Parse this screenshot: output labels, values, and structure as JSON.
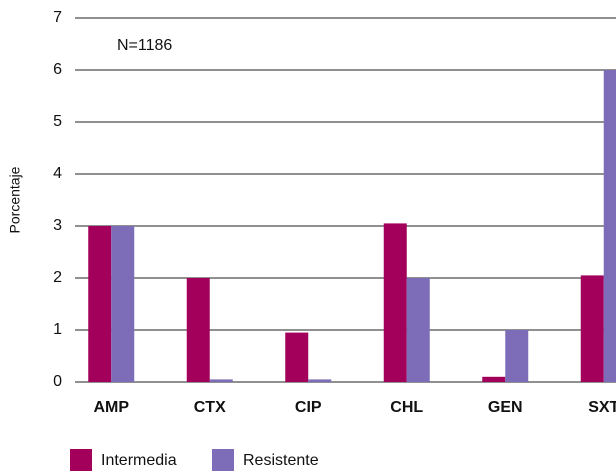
{
  "chart_data": {
    "type": "bar",
    "y_label": "Porcentaje",
    "annotation": "N=1186",
    "categories": [
      "AMP",
      "CTX",
      "CIP",
      "CHL",
      "GEN",
      "SXT"
    ],
    "series": [
      {
        "name": "Intermedia",
        "color": "#a3005c",
        "values": [
          3,
          2,
          0.95,
          3.05,
          0.1,
          2.05
        ]
      },
      {
        "name": "Resistente",
        "color": "#7d6db8",
        "values": [
          3,
          0.05,
          0.05,
          2,
          1,
          6
        ]
      }
    ],
    "ylim": [
      0,
      7
    ],
    "yticks": [
      0,
      1,
      2,
      3,
      4,
      5,
      6,
      7
    ],
    "grid": true,
    "legend": "bottom"
  }
}
